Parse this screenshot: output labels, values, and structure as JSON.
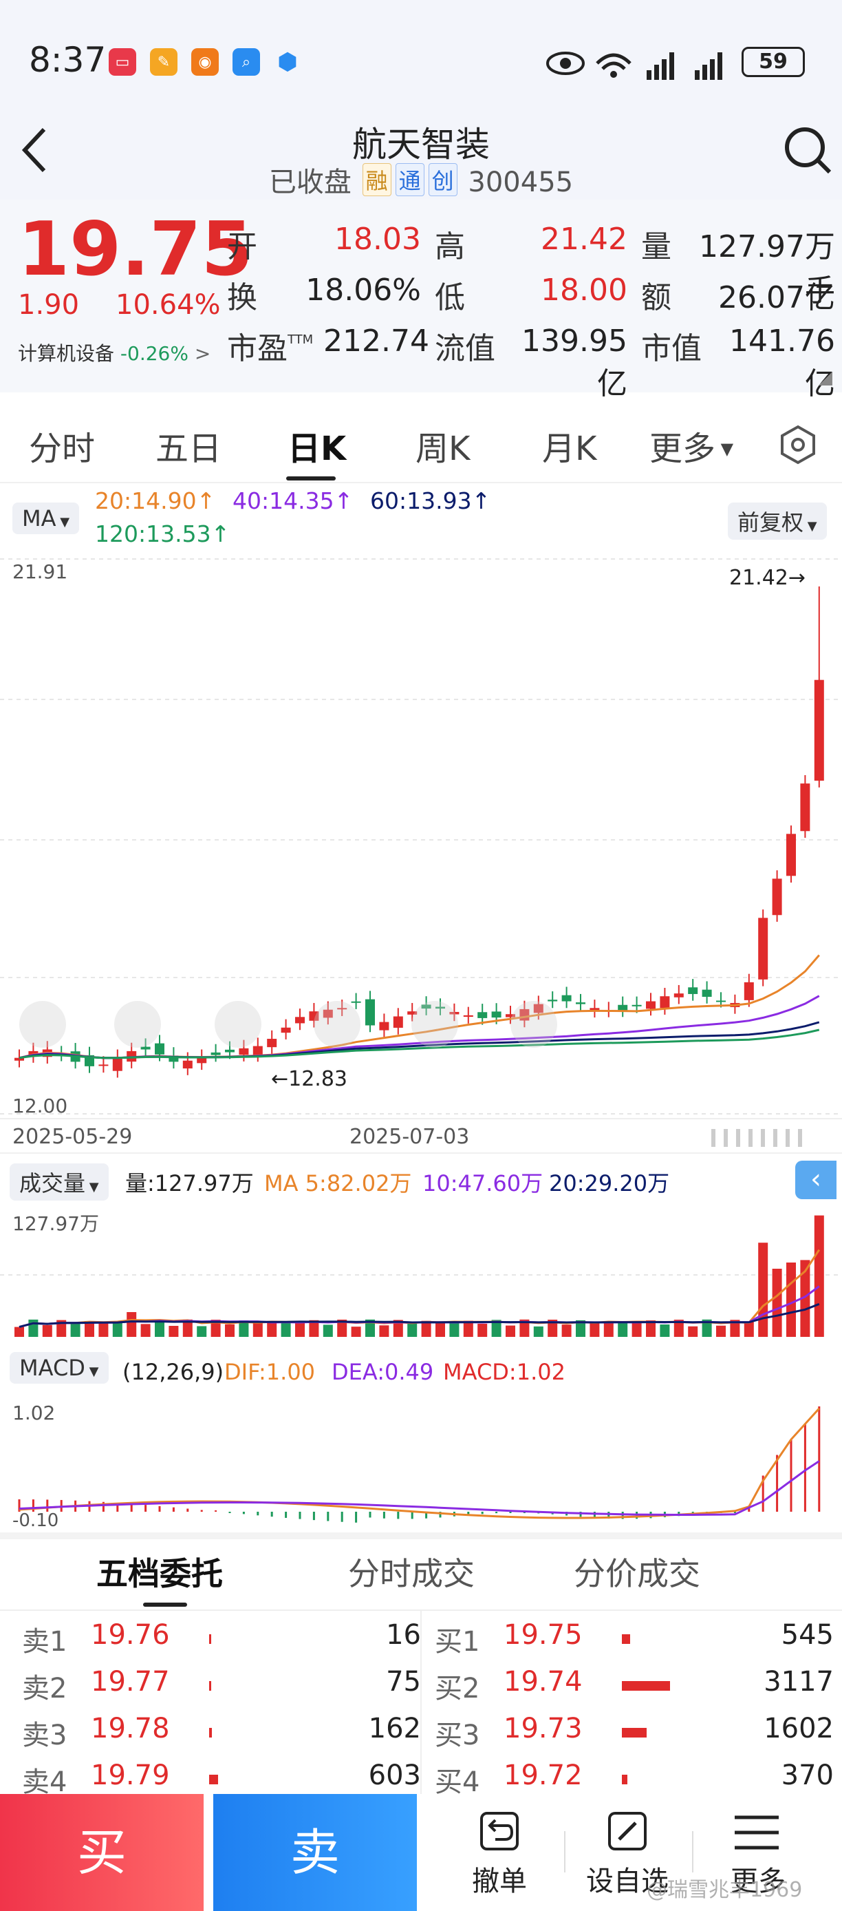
{
  "status_bar": {
    "time": "8:37",
    "battery": "59"
  },
  "header": {
    "stock_name": "航天智装",
    "status": "已收盘",
    "tags": [
      "融",
      "通",
      "创"
    ],
    "code": "300455"
  },
  "quote": {
    "price": "19.75",
    "change": "1.90",
    "change_pct": "10.64%",
    "industry": "计算机设备",
    "industry_change": "-0.26%",
    "open_label": "开",
    "open": "18.03",
    "high_label": "高",
    "high": "21.42",
    "volume_label": "量",
    "volume": "127.97万手",
    "turnover_label": "换",
    "turnover": "18.06%",
    "low_label": "低",
    "low": "18.00",
    "amount_label": "额",
    "amount": "26.07亿",
    "pe_label": "市盈",
    "pe_sup": "TTM",
    "pe": "212.74",
    "float_cap_label": "流值",
    "float_cap": "139.95亿",
    "mkt_cap_label": "市值",
    "mkt_cap": "141.76亿"
  },
  "tabs": [
    "分时",
    "五日",
    "日K",
    "周K",
    "月K",
    "更多"
  ],
  "ma": {
    "selector": "MA",
    "ma20": "20:14.90↑",
    "ma40": "40:14.35↑",
    "ma60": "60:13.93↑",
    "ma120": "120:13.53↑",
    "adjust": "前复权"
  },
  "chart": {
    "y_top": "21.91",
    "y_bottom": "12.00",
    "max_label": "21.42→",
    "min_label": "←12.83",
    "x_start": "2025-05-29",
    "x_mid": "2025-07-03"
  },
  "volume": {
    "selector": "成交量",
    "current": "量:127.97万",
    "ma5": "MA 5:82.02万",
    "ma10": "10:47.60万",
    "ma20": "20:29.20万",
    "y_top": "127.97万"
  },
  "macd": {
    "selector": "MACD",
    "params": "(12,26,9)",
    "dif": "DIF:1.00",
    "dea": "DEA:0.49",
    "macd": "MACD:1.02",
    "y_top": "1.02",
    "y_bottom": "-0.10"
  },
  "order_book": {
    "tabs": [
      "五档委托",
      "分时成交",
      "分价成交"
    ],
    "sell": [
      {
        "label": "卖1",
        "price": "19.76",
        "qty": "16",
        "bar": 0.005
      },
      {
        "label": "卖2",
        "price": "19.77",
        "qty": "75",
        "bar": 0.024
      },
      {
        "label": "卖3",
        "price": "19.78",
        "qty": "162",
        "bar": 0.052
      },
      {
        "label": "卖4",
        "price": "19.79",
        "qty": "603",
        "bar": 0.19
      }
    ],
    "buy": [
      {
        "label": "买1",
        "price": "19.75",
        "qty": "545",
        "bar": 0.17
      },
      {
        "label": "买2",
        "price": "19.74",
        "qty": "3117",
        "bar": 1.0
      },
      {
        "label": "买3",
        "price": "19.73",
        "qty": "1602",
        "bar": 0.51
      },
      {
        "label": "买4",
        "price": "19.72",
        "qty": "370",
        "bar": 0.12
      }
    ]
  },
  "bottom_bar": {
    "buy": "买",
    "sell": "卖",
    "cancel": "撤单",
    "custom": "设自选",
    "more": "更多",
    "watermark": "@瑞雪兆丰1969"
  },
  "colors": {
    "up": "#e02b2b",
    "down": "#1d9a5b",
    "ma20": "#e8842a",
    "ma40": "#8a2be2",
    "ma60": "#0b1c6b",
    "ma120": "#1d9a5b"
  }
}
